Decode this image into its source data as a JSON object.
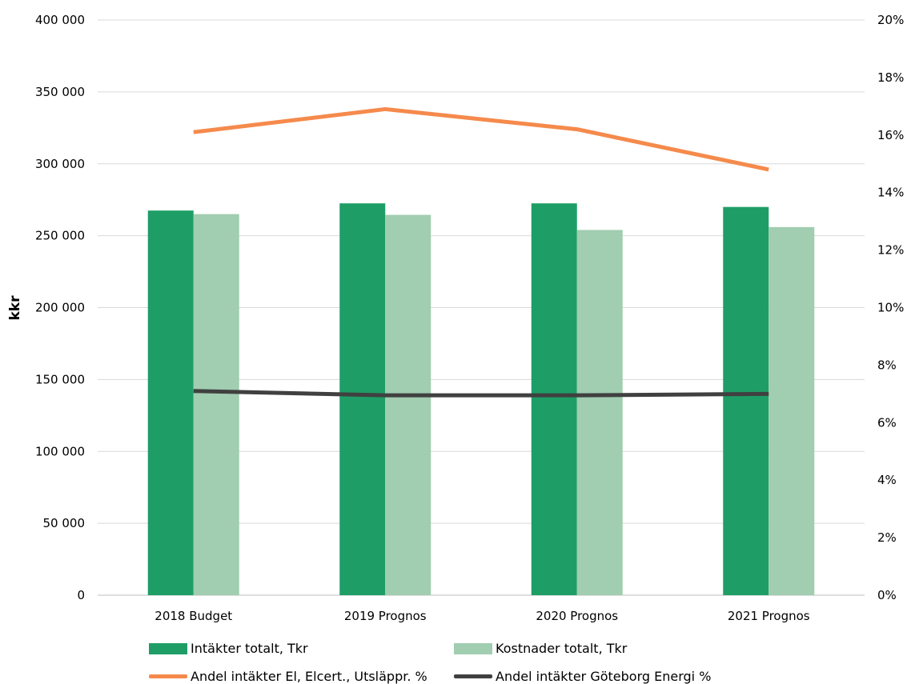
{
  "chart_data": {
    "type": "bar",
    "categories": [
      "2018 Budget",
      "2019 Prognos",
      "2020 Prognos",
      "2021 Prognos"
    ],
    "ylabel": "kkr",
    "ylim": [
      0,
      400000
    ],
    "y_ticks": [
      "0",
      "50 000",
      "100 000",
      "150 000",
      "200 000",
      "250 000",
      "300 000",
      "350 000",
      "400 000"
    ],
    "y2lim": [
      0,
      20
    ],
    "y2_ticks": [
      "0%",
      "2%",
      "4%",
      "6%",
      "8%",
      "10%",
      "12%",
      "14%",
      "16%",
      "18%",
      "20%"
    ],
    "grid": true,
    "legend_position": "bottom",
    "series": [
      {
        "name": "Intäkter totalt, Tkr",
        "kind": "bar",
        "axis": "left",
        "color": "#1e9e66",
        "values": [
          267500,
          272500,
          272500,
          270000
        ]
      },
      {
        "name": "Kostnader  totalt, Tkr",
        "kind": "bar",
        "axis": "left",
        "color": "#a1cdb1",
        "values": [
          265000,
          264500,
          254000,
          256000
        ]
      },
      {
        "name": "Andel intäkter El, Elcert., Utsläppr. %",
        "kind": "line",
        "axis": "right",
        "color": "#f58a4c",
        "values": [
          16.1,
          16.9,
          16.2,
          14.8
        ]
      },
      {
        "name": "Andel intäkter Göteborg Energi %",
        "kind": "line",
        "axis": "right",
        "color": "#404040",
        "values": [
          7.1,
          6.95,
          6.95,
          7.0
        ]
      }
    ]
  }
}
